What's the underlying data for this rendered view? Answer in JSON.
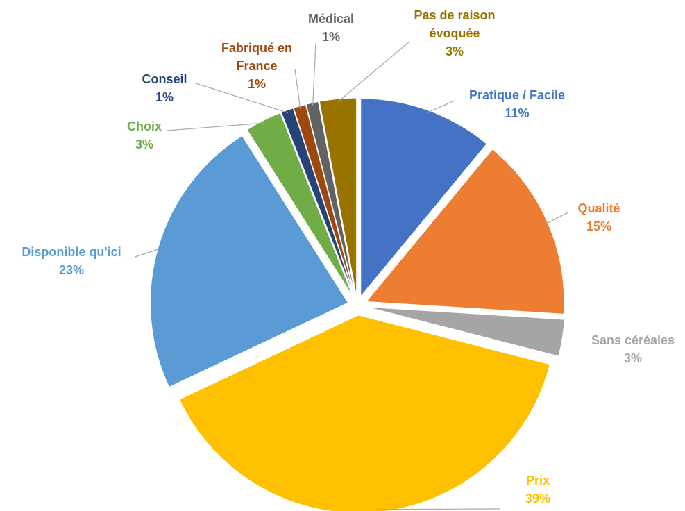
{
  "chart_data": {
    "type": "pie",
    "categories": [
      "Pratique / Facile",
      "Qualité",
      "Sans céréales",
      "Prix",
      "Disponible qu'ici",
      "Choix",
      "Conseil",
      "Fabriqué en France",
      "Médical",
      "Pas de raison évoquée"
    ],
    "values": [
      11,
      15,
      3,
      39,
      23,
      3,
      1,
      1,
      1,
      3
    ],
    "value_labels": [
      "11%",
      "15%",
      "3%",
      "39%",
      "23%",
      "3%",
      "1%",
      "1%",
      "1%",
      "3%"
    ],
    "colors": [
      "#4472c4",
      "#ed7d31",
      "#a5a5a5",
      "#ffc000",
      "#5b9bd5",
      "#70ad47",
      "#264478",
      "#9e480e",
      "#636363",
      "#997300"
    ]
  }
}
